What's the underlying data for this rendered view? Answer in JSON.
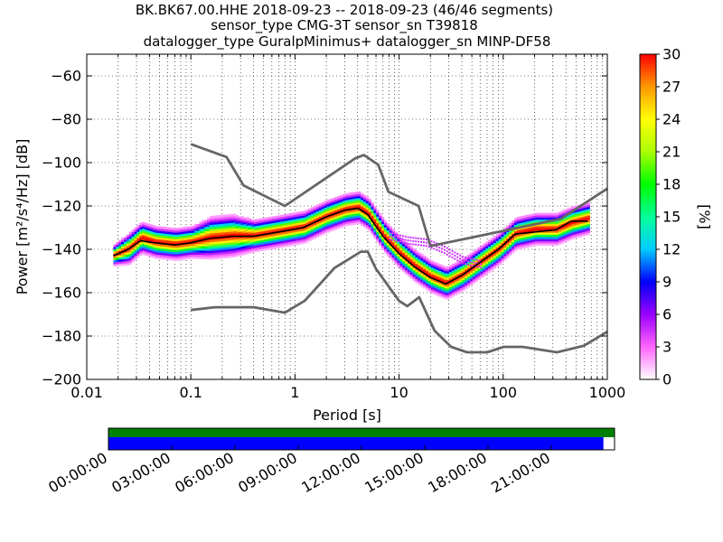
{
  "title": {
    "line1": "BK.BK67.00.HHE   2018-09-23 -- 2018-09-23  (46/46 segments)",
    "line2": "sensor_type CMG-3T sensor_sn T39818",
    "line3": "datalogger_type GuralpMinimus+ datalogger_sn MINP-DF58"
  },
  "chart_data": {
    "type": "heatmap",
    "xlabel": "Period [s]",
    "ylabel": "Power [m²/s⁴/Hz] [dB]",
    "x_scale": "log",
    "xlim": [
      0.01,
      1000
    ],
    "ylim": [
      -200,
      -50
    ],
    "x_ticks": [
      {
        "value": 0.01,
        "label": "0.01"
      },
      {
        "value": 0.1,
        "label": "0.1"
      },
      {
        "value": 1,
        "label": "1"
      },
      {
        "value": 10,
        "label": "10"
      },
      {
        "value": 100,
        "label": "100"
      },
      {
        "value": 1000,
        "label": "1000"
      }
    ],
    "y_ticks": [
      {
        "value": -60,
        "label": "−60"
      },
      {
        "value": -80,
        "label": "−80"
      },
      {
        "value": -100,
        "label": "−100"
      },
      {
        "value": -120,
        "label": "−120"
      },
      {
        "value": -140,
        "label": "−140"
      },
      {
        "value": -160,
        "label": "−160"
      },
      {
        "value": -180,
        "label": "−180"
      },
      {
        "value": -200,
        "label": "−200"
      }
    ],
    "grid": true,
    "colorbar": {
      "label": "[%]",
      "range": [
        0,
        30
      ],
      "ticks": [
        "0",
        "3",
        "6",
        "9",
        "12",
        "15",
        "18",
        "21",
        "24",
        "27",
        "30"
      ],
      "colormap": [
        "#ffffff",
        "#ff66ff",
        "#9900ff",
        "#0000ff",
        "#00ccff",
        "#00ff99",
        "#00ff00",
        "#aaff00",
        "#ffff00",
        "#ff9900",
        "#ff0000"
      ]
    },
    "psd_band": [
      {
        "period": 0.018,
        "center": -143,
        "spread": 2
      },
      {
        "period": 0.025,
        "center": -140,
        "spread": 3
      },
      {
        "period": 0.033,
        "center": -135,
        "spread": 3
      },
      {
        "period": 0.045,
        "center": -137,
        "spread": 3
      },
      {
        "period": 0.07,
        "center": -138,
        "spread": 3
      },
      {
        "period": 0.1,
        "center": -137,
        "spread": 3
      },
      {
        "period": 0.15,
        "center": -135,
        "spread": 4
      },
      {
        "period": 0.25,
        "center": -134,
        "spread": 4
      },
      {
        "period": 0.4,
        "center": -134,
        "spread": 3
      },
      {
        "period": 0.7,
        "center": -132,
        "spread": 3
      },
      {
        "period": 1.2,
        "center": -130,
        "spread": 3
      },
      {
        "period": 2,
        "center": -125,
        "spread": 3
      },
      {
        "period": 3,
        "center": -122,
        "spread": 3
      },
      {
        "period": 4,
        "center": -121,
        "spread": 3
      },
      {
        "period": 5,
        "center": -124,
        "spread": 3
      },
      {
        "period": 7,
        "center": -134,
        "spread": 3
      },
      {
        "period": 10,
        "center": -142,
        "spread": 3
      },
      {
        "period": 14,
        "center": -148,
        "spread": 3
      },
      {
        "period": 20,
        "center": -153,
        "spread": 3
      },
      {
        "period": 28,
        "center": -156,
        "spread": 3
      },
      {
        "period": 40,
        "center": -152,
        "spread": 3
      },
      {
        "period": 60,
        "center": -146,
        "spread": 3
      },
      {
        "period": 90,
        "center": -140,
        "spread": 3
      },
      {
        "period": 130,
        "center": -133,
        "spread": 3
      },
      {
        "period": 200,
        "center": -131,
        "spread": 3
      },
      {
        "period": 320,
        "center": -131,
        "spread": 3
      },
      {
        "period": 450,
        "center": -128,
        "spread": 3
      },
      {
        "period": 650,
        "center": -126,
        "spread": 3
      }
    ],
    "outlier_band": [
      {
        "period": 8,
        "center": -134,
        "spread": 2
      },
      {
        "period": 12,
        "center": -136,
        "spread": 2
      },
      {
        "period": 18,
        "center": -137,
        "spread": 2
      },
      {
        "period": 26,
        "center": -140,
        "spread": 2
      },
      {
        "period": 40,
        "center": -145,
        "spread": 2
      },
      {
        "period": 60,
        "center": -147,
        "spread": 2
      }
    ],
    "high_noise_model": [
      {
        "period": 0.1,
        "value": -91.5
      },
      {
        "period": 0.22,
        "value": -97.4
      },
      {
        "period": 0.32,
        "value": -110.5
      },
      {
        "period": 0.8,
        "value": -120
      },
      {
        "period": 3.8,
        "value": -98
      },
      {
        "period": 4.6,
        "value": -96.5
      },
      {
        "period": 6.3,
        "value": -101
      },
      {
        "period": 7.9,
        "value": -113.5
      },
      {
        "period": 15.4,
        "value": -120
      },
      {
        "period": 20,
        "value": -138.5
      },
      {
        "period": 354.8,
        "value": -126
      },
      {
        "period": 1000,
        "value": -112
      }
    ],
    "low_noise_model": [
      {
        "period": 0.1,
        "value": -168
      },
      {
        "period": 0.17,
        "value": -166.7
      },
      {
        "period": 0.4,
        "value": -166.7
      },
      {
        "period": 0.8,
        "value": -169.2
      },
      {
        "period": 1.24,
        "value": -163.7
      },
      {
        "period": 2.4,
        "value": -148.6
      },
      {
        "period": 4.3,
        "value": -141.1
      },
      {
        "period": 5,
        "value": -141.1
      },
      {
        "period": 6,
        "value": -149
      },
      {
        "period": 10,
        "value": -163.8
      },
      {
        "period": 12,
        "value": -166.2
      },
      {
        "period": 15.6,
        "value": -162.1
      },
      {
        "period": 21.9,
        "value": -177.5
      },
      {
        "period": 31.6,
        "value": -185
      },
      {
        "period": 45,
        "value": -187.5
      },
      {
        "period": 70,
        "value": -187.5
      },
      {
        "period": 101,
        "value": -185
      },
      {
        "period": 154,
        "value": -185
      },
      {
        "period": 328,
        "value": -187.5
      },
      {
        "period": 600,
        "value": -184.4
      },
      {
        "period": 1000,
        "value": -178
      }
    ],
    "mean_line": [
      {
        "period": 0.018,
        "value": -143
      },
      {
        "period": 0.025,
        "value": -140
      },
      {
        "period": 0.033,
        "value": -136
      },
      {
        "period": 0.045,
        "value": -137
      },
      {
        "period": 0.07,
        "value": -138
      },
      {
        "period": 0.1,
        "value": -137
      },
      {
        "period": 0.15,
        "value": -135
      },
      {
        "period": 0.25,
        "value": -134
      },
      {
        "period": 0.4,
        "value": -134
      },
      {
        "period": 0.7,
        "value": -132
      },
      {
        "period": 1.2,
        "value": -130
      },
      {
        "period": 2,
        "value": -125
      },
      {
        "period": 3,
        "value": -122
      },
      {
        "period": 4,
        "value": -121
      },
      {
        "period": 5,
        "value": -124
      },
      {
        "period": 7,
        "value": -134
      },
      {
        "period": 10,
        "value": -142
      },
      {
        "period": 14,
        "value": -148
      },
      {
        "period": 20,
        "value": -153
      },
      {
        "period": 28,
        "value": -156
      },
      {
        "period": 40,
        "value": -152
      },
      {
        "period": 60,
        "value": -146
      },
      {
        "period": 90,
        "value": -140
      },
      {
        "period": 130,
        "value": -133
      },
      {
        "period": 200,
        "value": -132
      },
      {
        "period": 320,
        "value": -131
      },
      {
        "period": 450,
        "value": -127
      },
      {
        "period": 650,
        "value": -127
      }
    ],
    "coverage": {
      "time_labels": [
        "00:00:00",
        "03:00:00",
        "06:00:00",
        "09:00:00",
        "12:00:00",
        "15:00:00",
        "18:00:00",
        "21:00:00"
      ],
      "data_fraction": 0.978,
      "colors": {
        "top": "#008000",
        "bottom": "#0000ff"
      }
    }
  }
}
